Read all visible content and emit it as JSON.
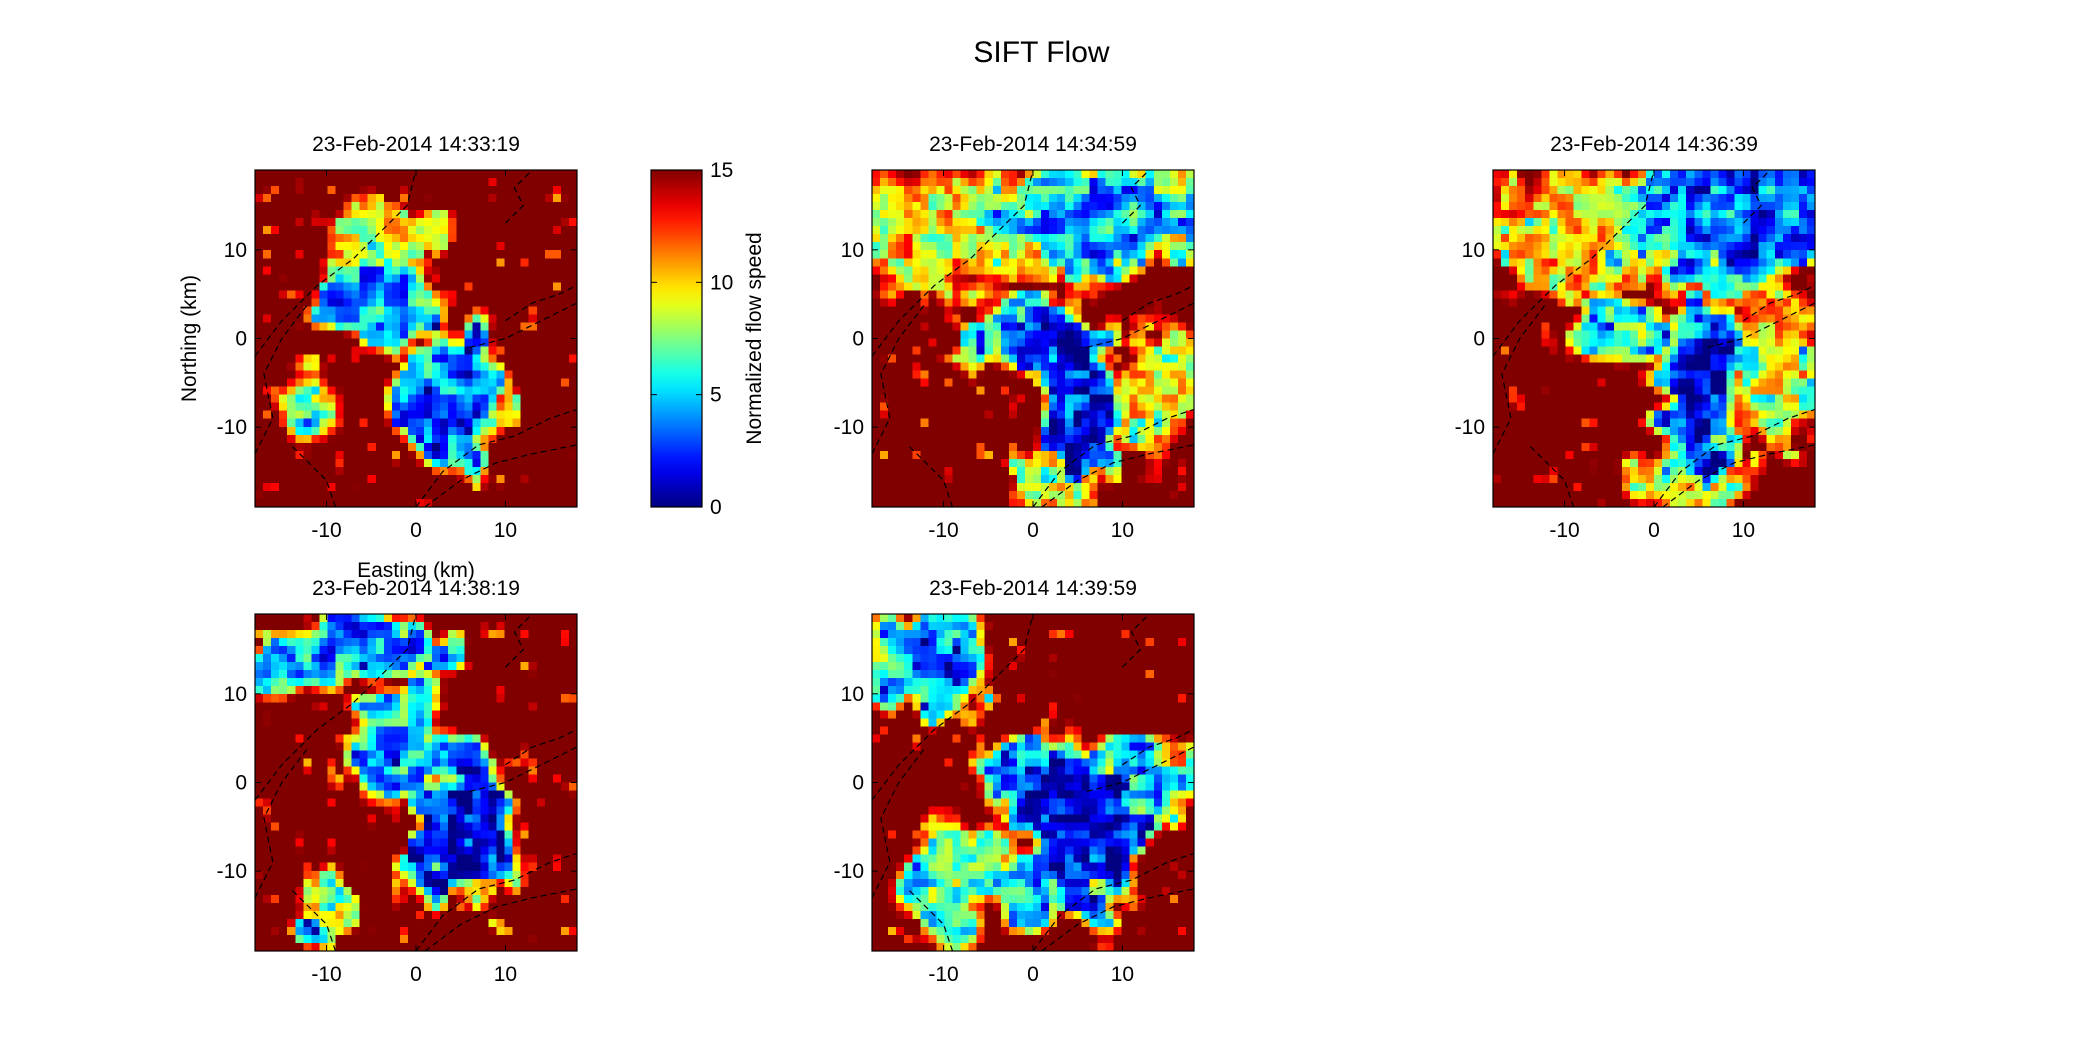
{
  "figure": {
    "title": "SIFT Flow"
  },
  "colorbar": {
    "label": "Normalized flow speed",
    "ticks": [
      0,
      5,
      10,
      15
    ],
    "range": [
      0,
      15
    ],
    "colormap": "jet"
  },
  "chart_data": [
    {
      "type": "heatmap",
      "title": "23-Feb-2014 14:33:19",
      "xlabel": "Easting (km)",
      "ylabel": "Northing (km)",
      "xlim": [
        -18,
        18
      ],
      "ylim": [
        -19,
        19
      ],
      "xticks": [
        -10,
        0,
        10
      ],
      "yticks": [
        -10,
        0,
        10
      ],
      "clim": [
        0,
        15
      ],
      "colorbar": true,
      "slow_regions": [
        {
          "x": -5,
          "y": 4,
          "rx": 6,
          "ry": 4,
          "min": 3
        },
        {
          "x": 4,
          "y": -7,
          "rx": 5,
          "ry": 7,
          "min": 2
        },
        {
          "x": -12,
          "y": -8,
          "rx": 3,
          "ry": 4,
          "min": 6
        },
        {
          "x": -4,
          "y": 11,
          "rx": 5,
          "ry": 4,
          "min": 7
        },
        {
          "x": 2,
          "y": 12,
          "rx": 2,
          "ry": 2,
          "min": 8
        }
      ]
    },
    {
      "type": "heatmap",
      "title": "23-Feb-2014 14:34:59",
      "xlabel": "",
      "ylabel": "",
      "xlim": [
        -18,
        18
      ],
      "ylim": [
        -19,
        19
      ],
      "xticks": [
        -10,
        0,
        10
      ],
      "yticks": [
        -10,
        0,
        10
      ],
      "clim": [
        0,
        15
      ],
      "colorbar": false,
      "slow_regions": [
        {
          "x": 8,
          "y": 14,
          "rx": 12,
          "ry": 6,
          "min": 3
        },
        {
          "x": -8,
          "y": 12,
          "rx": 12,
          "ry": 6,
          "min": 8
        },
        {
          "x": 5,
          "y": -7,
          "rx": 4,
          "ry": 8,
          "min": 0
        },
        {
          "x": -1,
          "y": 0,
          "rx": 6,
          "ry": 4,
          "min": 3
        },
        {
          "x": 14,
          "y": -6,
          "rx": 4,
          "ry": 6,
          "min": 7
        },
        {
          "x": 2,
          "y": -16,
          "rx": 4,
          "ry": 3,
          "min": 6
        }
      ]
    },
    {
      "type": "heatmap",
      "title": "23-Feb-2014 14:36:39",
      "xlabel": "",
      "ylabel": "",
      "xlim": [
        -18,
        18
      ],
      "ylim": [
        -19,
        19
      ],
      "xticks": [
        -10,
        0,
        10
      ],
      "yticks": [
        -10,
        0,
        10
      ],
      "clim": [
        0,
        15
      ],
      "colorbar": false,
      "slow_regions": [
        {
          "x": 8,
          "y": 14,
          "rx": 12,
          "ry": 7,
          "min": 2
        },
        {
          "x": -8,
          "y": 12,
          "rx": 10,
          "ry": 6,
          "min": 8
        },
        {
          "x": 5,
          "y": -6,
          "rx": 4,
          "ry": 8,
          "min": 0
        },
        {
          "x": -3,
          "y": 1,
          "rx": 5,
          "ry": 3,
          "min": 4
        },
        {
          "x": 14,
          "y": -4,
          "rx": 5,
          "ry": 8,
          "min": 7
        },
        {
          "x": 4,
          "y": -16,
          "rx": 6,
          "ry": 3,
          "min": 7
        }
      ]
    },
    {
      "type": "heatmap",
      "title": "23-Feb-2014 14:38:19",
      "xlabel": "",
      "ylabel": "",
      "xlim": [
        -18,
        18
      ],
      "ylim": [
        -19,
        19
      ],
      "xticks": [
        -10,
        0,
        10
      ],
      "yticks": [
        -10,
        0,
        10
      ],
      "clim": [
        0,
        15
      ],
      "colorbar": false,
      "slow_regions": [
        {
          "x": -2,
          "y": 4,
          "rx": 5,
          "ry": 6,
          "min": 3
        },
        {
          "x": 5,
          "y": -5,
          "rx": 5,
          "ry": 8,
          "min": 0
        },
        {
          "x": -5,
          "y": 15,
          "rx": 8,
          "ry": 4,
          "min": 3
        },
        {
          "x": -15,
          "y": 12,
          "rx": 3,
          "ry": 3,
          "min": 4
        },
        {
          "x": -10,
          "y": -13,
          "rx": 3,
          "ry": 3,
          "min": 6
        },
        {
          "x": -12,
          "y": -17,
          "rx": 2,
          "ry": 2,
          "min": 2
        }
      ]
    },
    {
      "type": "heatmap",
      "title": "23-Feb-2014 14:39:59",
      "xlabel": "",
      "ylabel": "",
      "xlim": [
        -18,
        18
      ],
      "ylim": [
        -19,
        19
      ],
      "xticks": [
        -10,
        0,
        10
      ],
      "yticks": [
        -10,
        0,
        10
      ],
      "clim": [
        0,
        15
      ],
      "colorbar": false,
      "slow_regions": [
        {
          "x": -11,
          "y": 13,
          "rx": 6,
          "ry": 5,
          "min": 3
        },
        {
          "x": 0,
          "y": 1,
          "rx": 5,
          "ry": 4,
          "min": 2
        },
        {
          "x": 6,
          "y": -6,
          "rx": 6,
          "ry": 7,
          "min": 0
        },
        {
          "x": -9,
          "y": -11,
          "rx": 5,
          "ry": 6,
          "min": 5
        },
        {
          "x": -1,
          "y": -13,
          "rx": 3,
          "ry": 3,
          "min": 3
        },
        {
          "x": 12,
          "y": 0,
          "rx": 6,
          "ry": 4,
          "min": 4
        }
      ]
    }
  ]
}
